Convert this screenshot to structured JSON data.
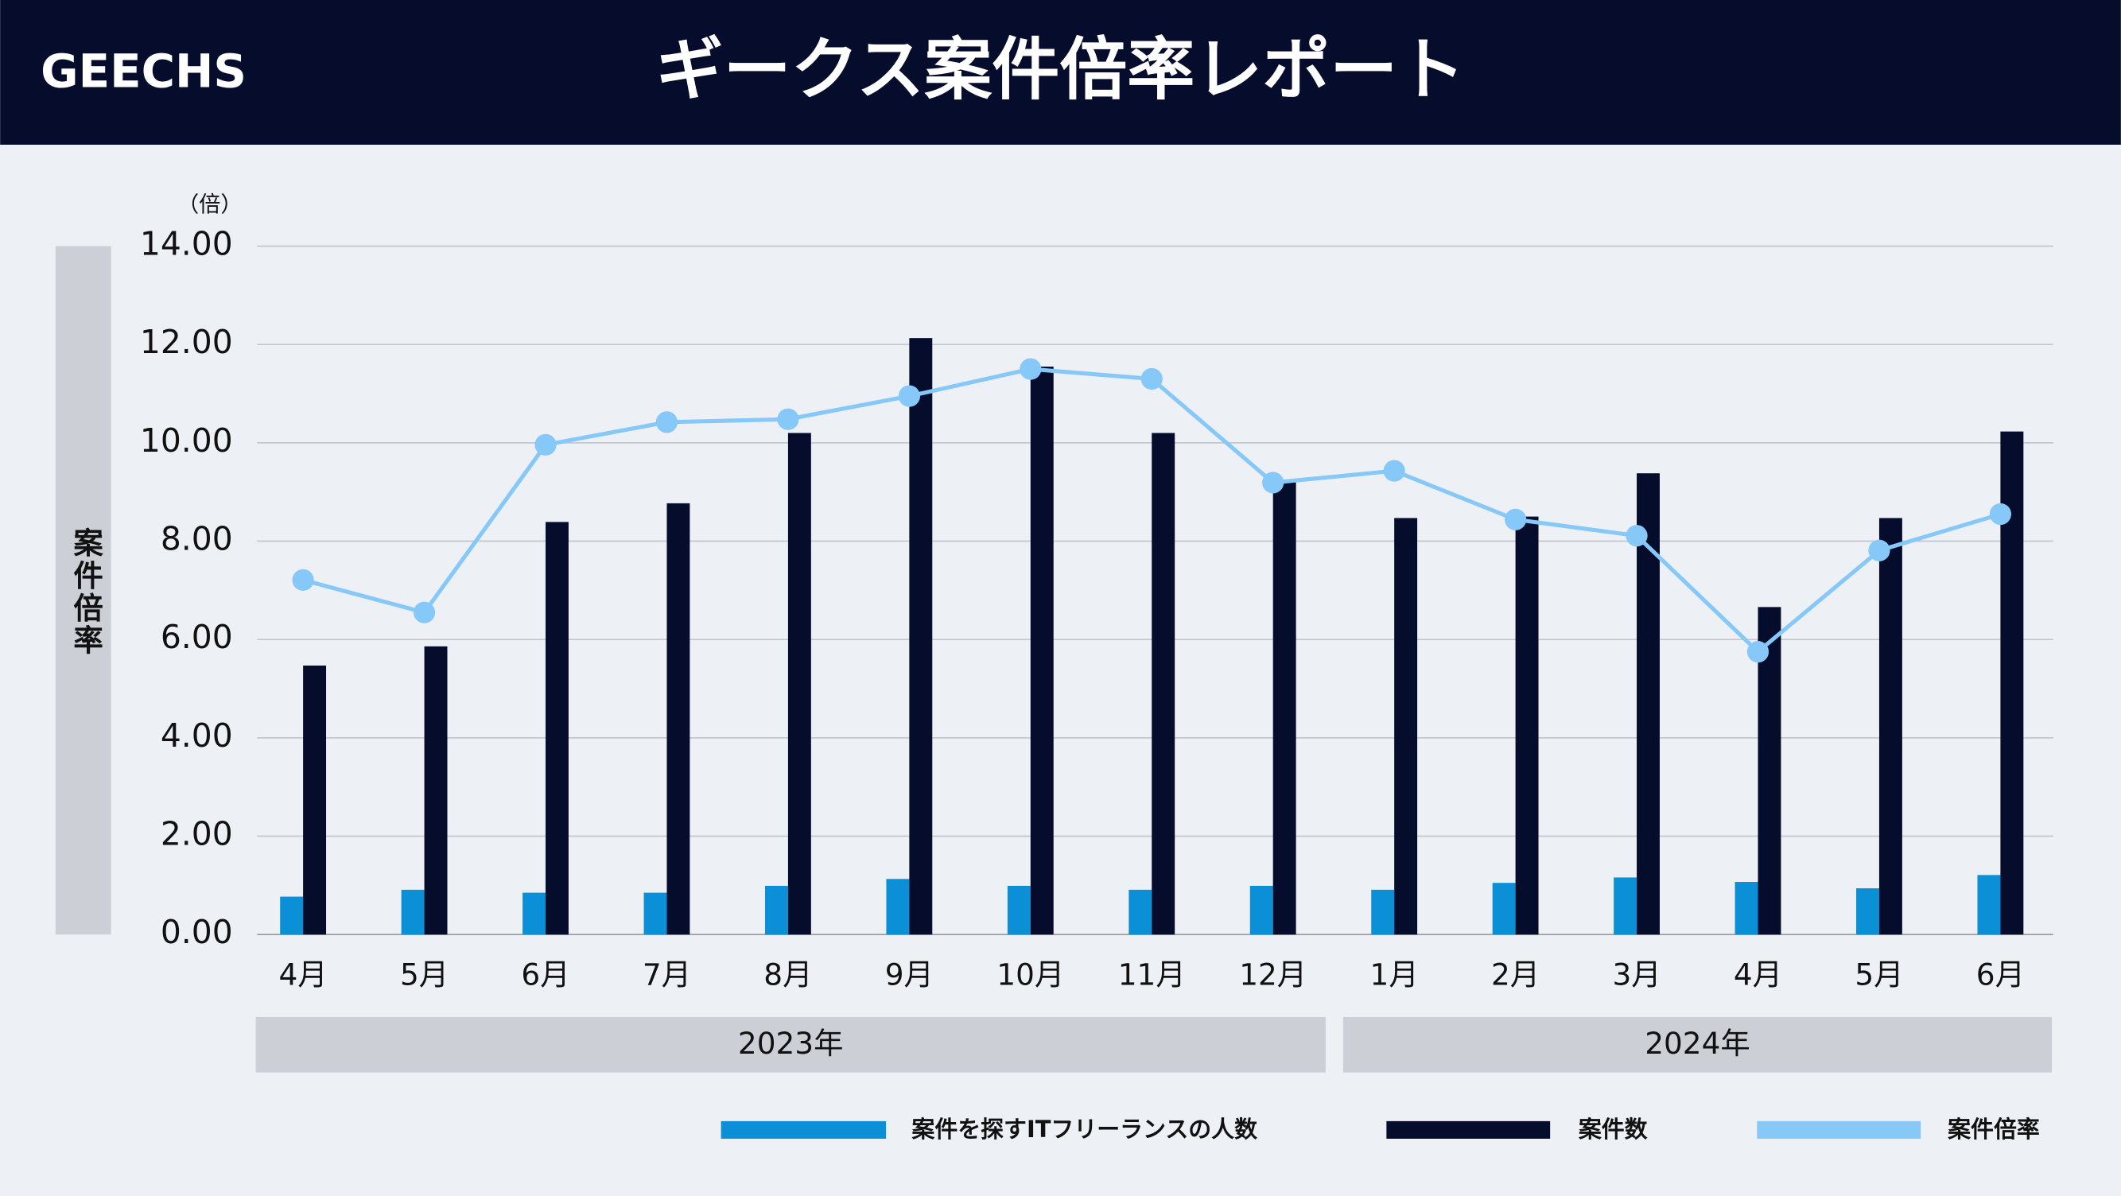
{
  "header": {
    "logo": "GEECHS"
  },
  "chart_data": {
    "type": "bar+line",
    "title": "ギークス案件倍率レポート",
    "y_label": "案件倍率",
    "y_unit": "（倍）",
    "categories": [
      "4月",
      "5月",
      "6月",
      "7月",
      "8月",
      "9月",
      "10月",
      "11月",
      "12月",
      "1月",
      "2月",
      "3月",
      "4月",
      "5月",
      "6月"
    ],
    "years": [
      "2023年",
      "2024年"
    ],
    "ylim": [
      0,
      14
    ],
    "yticks": [
      {
        "value": 0,
        "label": "0.00"
      },
      {
        "value": 2,
        "label": "2.00"
      },
      {
        "value": 4,
        "label": "4.00"
      },
      {
        "value": 6,
        "label": "6.00"
      },
      {
        "value": 8,
        "label": "8.00"
      },
      {
        "value": 10,
        "label": "10.00"
      },
      {
        "value": 12,
        "label": "12.00"
      },
      {
        "value": 14,
        "label": "14.00"
      }
    ],
    "grid": true,
    "series": [
      {
        "name": "案件を探すITフリーランスの人数",
        "type": "bar",
        "color": "#0b8fd6",
        "values": [
          0.77,
          0.91,
          0.85,
          0.85,
          0.99,
          1.13,
          0.99,
          0.91,
          0.99,
          0.91,
          1.05,
          1.16,
          1.07,
          0.94,
          1.21
        ]
      },
      {
        "name": "案件数",
        "type": "bar",
        "color": "#060c2c",
        "values": [
          5.47,
          5.86,
          8.39,
          8.77,
          10.2,
          12.13,
          11.55,
          10.2,
          9.25,
          8.47,
          8.5,
          9.38,
          6.66,
          8.47,
          10.23
        ]
      },
      {
        "name": "案件倍率",
        "type": "line",
        "color": "#86c8f7",
        "values": [
          7.21,
          6.55,
          9.96,
          10.42,
          10.48,
          10.95,
          11.5,
          11.3,
          9.19,
          9.43,
          8.44,
          8.11,
          5.75,
          7.81,
          8.55
        ]
      }
    ]
  }
}
